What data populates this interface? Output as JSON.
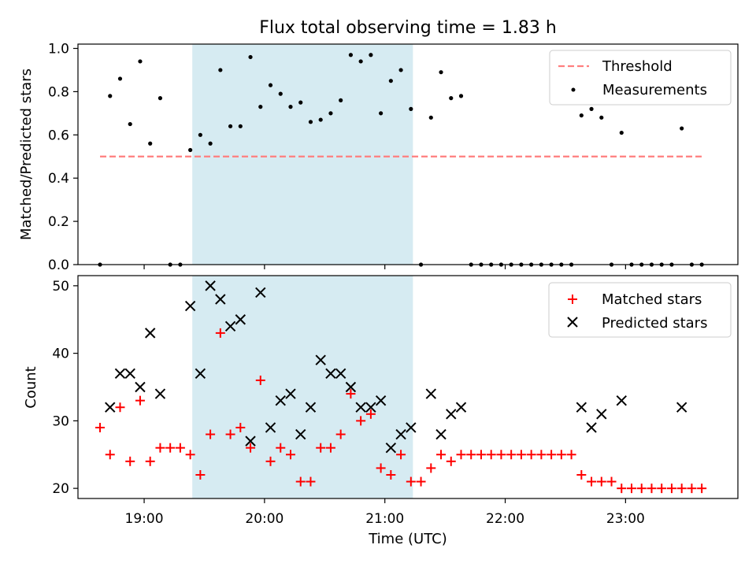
{
  "figure": {
    "title": "Flux total observing time = 1.83 h"
  },
  "chart_data": [
    {
      "type": "scatter",
      "panel": "top",
      "ylabel": "Matched/Predicted stars",
      "xlabel": "",
      "xlim": [
        "18:27",
        "23:56"
      ],
      "ylim": [
        0,
        1.02
      ],
      "yticks": [
        "0.0",
        "0.2",
        "0.4",
        "0.6",
        "0.8",
        "1.0"
      ],
      "xticks": [
        "19:00",
        "20:00",
        "21:00",
        "22:00",
        "23:00"
      ],
      "shaded_span": {
        "start": "19:24",
        "end": "21:14",
        "color": "#add8e6"
      },
      "legend_position": "top-right",
      "series": [
        {
          "name": "Threshold",
          "kind": "dashed-line",
          "color": "#ff7f7f",
          "x": [
            "18:38",
            "23:38"
          ],
          "y": [
            0.5,
            0.5
          ]
        },
        {
          "name": "Measurements",
          "kind": "points",
          "color": "#000000",
          "x": [
            "18:38",
            "18:43",
            "18:48",
            "18:53",
            "18:58",
            "19:03",
            "19:08",
            "19:13",
            "19:18",
            "19:23",
            "19:28",
            "19:33",
            "19:38",
            "19:43",
            "19:48",
            "19:53",
            "19:58",
            "20:03",
            "20:08",
            "20:13",
            "20:18",
            "20:23",
            "20:28",
            "20:33",
            "20:38",
            "20:43",
            "20:48",
            "20:53",
            "20:58",
            "21:03",
            "21:08",
            "21:13",
            "21:18",
            "21:23",
            "21:28",
            "21:33",
            "21:38",
            "21:43",
            "21:48",
            "21:53",
            "21:58",
            "22:03",
            "22:08",
            "22:13",
            "22:18",
            "22:23",
            "22:28",
            "22:33",
            "22:38",
            "22:43",
            "22:48",
            "22:53",
            "22:58",
            "23:03",
            "23:08",
            "23:13",
            "23:18",
            "23:23",
            "23:28",
            "23:33",
            "23:38"
          ],
          "y": [
            0,
            0.78,
            0.86,
            0.65,
            0.94,
            0.56,
            0.77,
            0,
            0,
            0.53,
            0.6,
            0.56,
            0.9,
            0.64,
            0.64,
            0.96,
            0.73,
            0.83,
            0.79,
            0.73,
            0.75,
            0.66,
            0.67,
            0.7,
            0.76,
            0.97,
            0.94,
            0.97,
            0.7,
            0.85,
            0.9,
            0.72,
            0,
            0.68,
            0.89,
            0.77,
            0.78,
            0,
            0,
            0,
            0,
            0,
            0,
            0,
            0,
            0,
            0,
            0,
            0.69,
            0.72,
            0.68,
            0,
            0.61,
            0,
            0,
            0,
            0,
            0,
            0.63,
            0,
            0
          ]
        }
      ]
    },
    {
      "type": "scatter",
      "panel": "bottom",
      "ylabel": "Count",
      "xlabel": "Time (UTC)",
      "xlim": [
        "18:27",
        "23:56"
      ],
      "ylim": [
        18.5,
        51.5
      ],
      "yticks": [
        "20",
        "30",
        "40",
        "50"
      ],
      "xticks": [
        "19:00",
        "20:00",
        "21:00",
        "22:00",
        "23:00"
      ],
      "shaded_span": {
        "start": "19:24",
        "end": "21:14",
        "color": "#add8e6"
      },
      "legend_position": "top-right",
      "series": [
        {
          "name": "Matched stars",
          "marker": "+",
          "color": "#ff0000",
          "x": [
            "18:38",
            "18:43",
            "18:48",
            "18:53",
            "18:58",
            "19:03",
            "19:08",
            "19:13",
            "19:18",
            "19:23",
            "19:28",
            "19:33",
            "19:38",
            "19:43",
            "19:48",
            "19:53",
            "19:58",
            "20:03",
            "20:08",
            "20:13",
            "20:18",
            "20:23",
            "20:28",
            "20:33",
            "20:38",
            "20:43",
            "20:48",
            "20:53",
            "20:58",
            "21:03",
            "21:08",
            "21:13",
            "21:18",
            "21:23",
            "21:28",
            "21:33",
            "21:38",
            "21:43",
            "21:48",
            "21:53",
            "21:58",
            "22:03",
            "22:08",
            "22:13",
            "22:18",
            "22:23",
            "22:28",
            "22:33",
            "22:38",
            "22:43",
            "22:48",
            "22:53",
            "22:58",
            "23:03",
            "23:08",
            "23:13",
            "23:18",
            "23:23",
            "23:28",
            "23:33",
            "23:38"
          ],
          "y": [
            29,
            25,
            32,
            24,
            33,
            24,
            26,
            26,
            26,
            25,
            22,
            28,
            43,
            28,
            29,
            26,
            36,
            24,
            26,
            25,
            21,
            21,
            26,
            26,
            28,
            34,
            30,
            31,
            23,
            22,
            25,
            21,
            21,
            23,
            25,
            24,
            25,
            25,
            25,
            25,
            25,
            25,
            25,
            25,
            25,
            25,
            25,
            25,
            22,
            21,
            21,
            21,
            20,
            20,
            20,
            20,
            20,
            20,
            20,
            20,
            20
          ]
        },
        {
          "name": "Predicted stars",
          "marker": "x",
          "color": "#000000",
          "x": [
            "18:43",
            "18:48",
            "18:53",
            "18:58",
            "19:03",
            "19:08",
            "19:23",
            "19:28",
            "19:33",
            "19:38",
            "19:43",
            "19:48",
            "19:53",
            "19:58",
            "20:03",
            "20:08",
            "20:13",
            "20:18",
            "20:23",
            "20:28",
            "20:33",
            "20:38",
            "20:43",
            "20:48",
            "20:53",
            "20:58",
            "21:03",
            "21:08",
            "21:13",
            "21:23",
            "21:28",
            "21:33",
            "21:38",
            "22:38",
            "22:43",
            "22:48",
            "22:58",
            "23:28"
          ],
          "y": [
            32,
            37,
            37,
            35,
            43,
            34,
            47,
            37,
            50,
            48,
            44,
            45,
            27,
            49,
            29,
            33,
            34,
            28,
            32,
            39,
            37,
            37,
            35,
            32,
            32,
            33,
            26,
            28,
            29,
            34,
            28,
            31,
            32,
            32,
            29,
            31,
            33,
            32
          ]
        }
      ]
    }
  ]
}
